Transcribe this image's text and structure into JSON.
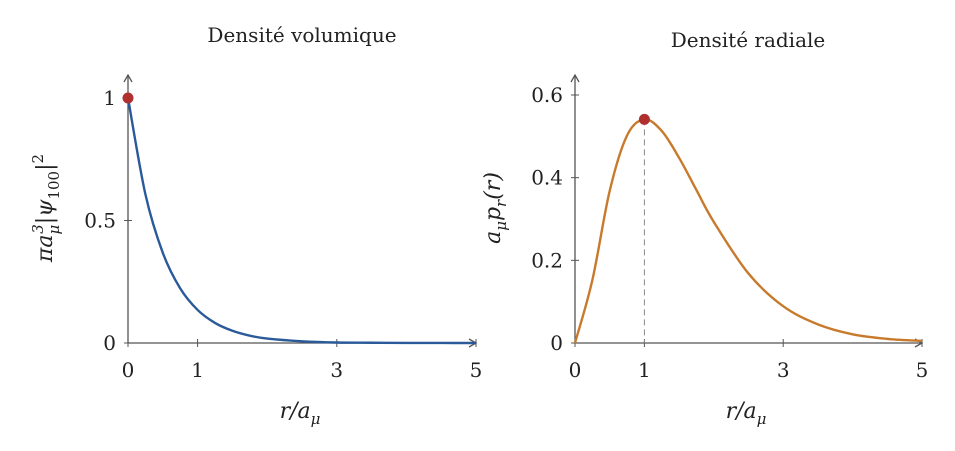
{
  "chart_data": [
    {
      "type": "line",
      "title": "Densité volumique",
      "xlabel": "r/aμ",
      "ylabel": "πaμ³|ψ100|²",
      "xlim": [
        0,
        5
      ],
      "ylim": [
        0,
        1.1
      ],
      "xticks": [
        0,
        1,
        3,
        5
      ],
      "xtick_labels": [
        "0",
        "1",
        "3",
        "5"
      ],
      "yticks": [
        0,
        0.5,
        1
      ],
      "ytick_labels": [
        "0",
        "0.5",
        "1"
      ],
      "grid": false,
      "series": [
        {
          "color": "#2a5a9a",
          "x": [
            0,
            0.25,
            0.5,
            0.75,
            1,
            1.25,
            1.5,
            1.75,
            2,
            2.5,
            3,
            3.5,
            4,
            4.5,
            5
          ],
          "y": [
            1,
            0.607,
            0.368,
            0.223,
            0.135,
            0.082,
            0.05,
            0.03,
            0.018,
            0.007,
            0.002,
            0.001,
            0.0003,
            0.0001,
            0
          ]
        }
      ],
      "highlight_point": {
        "x": 0,
        "y": 1,
        "color": "#b03030"
      }
    },
    {
      "type": "line",
      "title": "Densité radiale",
      "xlabel": "r/aμ",
      "ylabel": "aμpr(r)",
      "xlim": [
        0,
        5
      ],
      "ylim": [
        0,
        0.65
      ],
      "xticks": [
        0,
        1,
        3,
        5
      ],
      "xtick_labels": [
        "0",
        "1",
        "3",
        "5"
      ],
      "yticks": [
        0,
        0.2,
        0.4,
        0.6
      ],
      "ytick_labels": [
        "0",
        "0.2",
        "0.4",
        "0.6"
      ],
      "grid": false,
      "series": [
        {
          "color": "#c87a2c",
          "x": [
            0,
            0.25,
            0.5,
            0.75,
            1,
            1.25,
            1.5,
            1.75,
            2,
            2.5,
            3,
            3.5,
            4,
            4.5,
            5
          ],
          "y": [
            0,
            0.152,
            0.368,
            0.502,
            0.541,
            0.513,
            0.448,
            0.37,
            0.293,
            0.168,
            0.089,
            0.045,
            0.021,
            0.01,
            0.005
          ]
        }
      ],
      "highlight_point": {
        "x": 1,
        "y": 0.541,
        "color": "#b03030"
      },
      "reference_line": {
        "x": 1,
        "style": "dashed",
        "color": "#888888"
      }
    }
  ]
}
